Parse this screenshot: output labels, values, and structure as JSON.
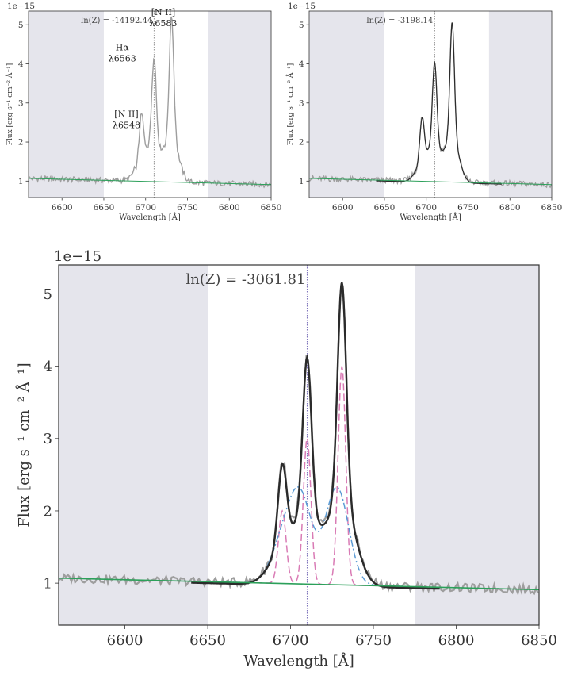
{
  "chart_data": [
    {
      "type": "line",
      "panel": "top-left",
      "xlim": [
        6560,
        6850
      ],
      "ylim": [
        0.58,
        5.35
      ],
      "x_ticks": [
        6600,
        6650,
        6700,
        6750,
        6800,
        6850
      ],
      "y_ticks": [
        1,
        2,
        3,
        4,
        5
      ],
      "exponent_label": "1e−15",
      "xlabel": "Wavelength [Å]",
      "ylabel": "Flux [erg s⁻¹ cm⁻² Å⁻¹]",
      "annotation": "ln(Z) = -14192.44",
      "shaded_regions": [
        [
          6560,
          6650
        ],
        [
          6775,
          6850
        ]
      ],
      "vline_x": 6710,
      "line_labels": [
        {
          "line1": "[N II]",
          "line2": "λ6548",
          "x": 6696,
          "y": 2.4
        },
        {
          "line1": "Hα",
          "line2": "λ6563",
          "x": 6691,
          "y": 4.1
        },
        {
          "line1": "[N II]",
          "line2": "λ6583",
          "x": 6740,
          "y": 5.0
        }
      ],
      "continuum": [
        [
          6560,
          1.07
        ],
        [
          6850,
          0.91
        ]
      ],
      "peaks": {
        "nii_6548": [
          6695,
          2.55
        ],
        "halpha": [
          6710,
          4.1
        ],
        "nii_6583": [
          6731,
          5.2
        ]
      },
      "series": [
        {
          "name": "",
          "role": "observed",
          "color": "#9e9e9e"
        },
        {
          "name": "",
          "role": "continuum",
          "color": "#2ca05a"
        }
      ]
    },
    {
      "type": "line",
      "panel": "top-right",
      "xlim": [
        6560,
        6850
      ],
      "ylim": [
        0.58,
        5.35
      ],
      "x_ticks": [
        6600,
        6650,
        6700,
        6750,
        6800,
        6850
      ],
      "y_ticks": [
        1,
        2,
        3,
        4,
        5
      ],
      "exponent_label": "1e−15",
      "xlabel": "Wavelength [Å]",
      "ylabel": "Flux [erg s⁻¹ cm⁻² Å⁻¹]",
      "annotation": "ln(Z) = -3198.14",
      "shaded_regions": [
        [
          6560,
          6650
        ],
        [
          6775,
          6850
        ]
      ],
      "vline_x": 6710,
      "continuum": [
        [
          6560,
          1.07
        ],
        [
          6850,
          0.91
        ]
      ],
      "peaks": {
        "nii_6548": [
          6695,
          2.5
        ],
        "halpha": [
          6710,
          3.95
        ],
        "nii_6583": [
          6731,
          5.05
        ]
      },
      "series": [
        {
          "name": "",
          "role": "observed",
          "color": "#9e9e9e"
        },
        {
          "name": "",
          "role": "model",
          "color": "#333333"
        },
        {
          "name": "",
          "role": "continuum",
          "color": "#2ca05a"
        }
      ]
    },
    {
      "type": "line",
      "panel": "bottom",
      "xlim": [
        6560,
        6850
      ],
      "ylim": [
        0.42,
        5.4
      ],
      "x_ticks": [
        6600,
        6650,
        6700,
        6750,
        6800,
        6850
      ],
      "y_ticks": [
        1,
        2,
        3,
        4,
        5
      ],
      "exponent_label": "1e−15",
      "xlabel": "Wavelength [Å]",
      "ylabel": "Flux [erg s⁻¹ cm⁻² Å⁻¹]",
      "annotation": "ln(Z) = -3061.81",
      "shaded_regions": [
        [
          6560,
          6650
        ],
        [
          6775,
          6850
        ]
      ],
      "vline_x": 6710,
      "continuum": [
        [
          6560,
          1.07
        ],
        [
          6850,
          0.91
        ]
      ],
      "peaks": {
        "total": [
          [
            6695,
            2.52
          ],
          [
            6710,
            4.03
          ],
          [
            6731,
            5.15
          ]
        ]
      },
      "components": {
        "narrow": [
          [
            6695,
            2.0
          ],
          [
            6710,
            3.0
          ],
          [
            6731,
            4.0
          ]
        ],
        "broad": [
          [
            6695,
            1.5
          ],
          [
            6706,
            2.15
          ],
          [
            6728,
            2.32
          ]
        ]
      },
      "series": [
        {
          "name": "",
          "role": "observed",
          "color": "#9e9e9e"
        },
        {
          "name": "",
          "role": "model",
          "color": "#333333"
        },
        {
          "name": "",
          "role": "narrow-component",
          "color": "#d97bb5"
        },
        {
          "name": "",
          "role": "broad-component",
          "color": "#5b9bd5"
        },
        {
          "name": "",
          "role": "continuum",
          "color": "#2ca05a"
        }
      ]
    }
  ]
}
